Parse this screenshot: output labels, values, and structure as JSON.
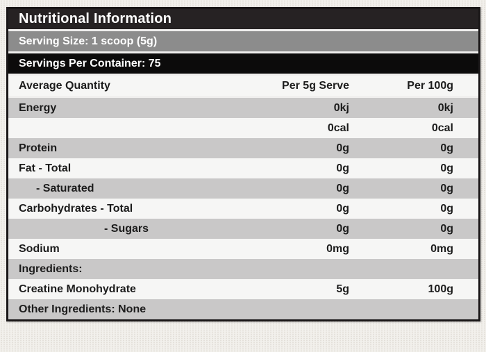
{
  "panel": {
    "title": "Nutritional Information",
    "serving_size": "Serving Size: 1 scoop (5g)",
    "servings_per_container": "Servings Per Container: 75",
    "column_headers": {
      "name": "Average Quantity",
      "per_serve": "Per 5g Serve",
      "per_100g": "Per 100g"
    },
    "rows": [
      {
        "name": "Energy",
        "per_serve": "0kj",
        "per_100g": "0kj",
        "indent": 0
      },
      {
        "name": "",
        "per_serve": "0cal",
        "per_100g": "0cal",
        "indent": 0
      },
      {
        "name": "Protein",
        "per_serve": "0g",
        "per_100g": "0g",
        "indent": 0
      },
      {
        "name": "Fat - Total",
        "per_serve": "0g",
        "per_100g": "0g",
        "indent": 0
      },
      {
        "name": "- Saturated",
        "per_serve": "0g",
        "per_100g": "0g",
        "indent": 1
      },
      {
        "name": "Carbohydrates - Total",
        "per_serve": "0g",
        "per_100g": "0g",
        "indent": 0
      },
      {
        "name": "- Sugars",
        "per_serve": "0g",
        "per_100g": "0g",
        "indent": 2
      },
      {
        "name": "Sodium",
        "per_serve": "0mg",
        "per_100g": "0mg",
        "indent": 0
      },
      {
        "name": "Ingredients:",
        "per_serve": "",
        "per_100g": "",
        "indent": 0
      },
      {
        "name": "Creatine Monohydrate",
        "per_serve": "5g",
        "per_100g": "100g",
        "indent": 0
      },
      {
        "name": "Other Ingredients: None",
        "per_serve": "",
        "per_100g": "",
        "indent": 0
      }
    ]
  },
  "colors": {
    "title_bar_bg": "#262223",
    "serving_bar_bg": "#8c8c8c",
    "container_bar_bg": "#0c0b0b",
    "bar_text": "#ffffff",
    "row_light_bg": "#f6f6f5",
    "row_dark_bg": "#c9c8c8",
    "row_text": "#1c1c1c",
    "panel_gap": "#f0efee",
    "border": "#1a1718",
    "page_bg": "#f2f0ec",
    "page_dot": "#e3dfd9"
  }
}
